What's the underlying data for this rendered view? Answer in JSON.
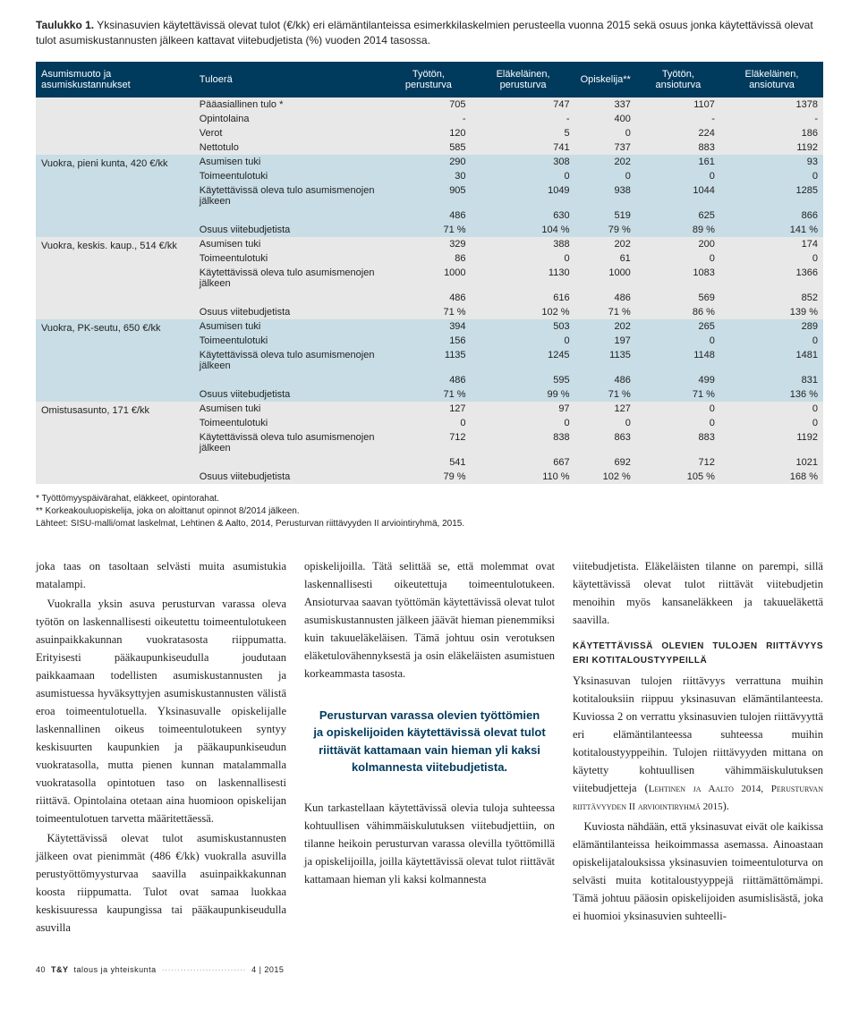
{
  "table": {
    "caption_label": "Taulukko 1.",
    "caption_text": "Yksinasuvien käytettävissä olevat tulot (€/kk) eri elämäntilanteissa esimerkkilaskelmien perusteella vuonna 2015 sekä osuus jonka käytettävissä olevat tulot asumiskustannusten jälkeen kattavat viitebudjetista (%) vuoden 2014 tasossa.",
    "headers": {
      "col1": "Asumismuoto ja asumiskustannukset",
      "col2": "Tuloerä",
      "col3": "Työtön, perusturva",
      "col4": "Eläkeläinen, perusturva",
      "col5": "Opiskelija**",
      "col6": "Työtön, ansioturva",
      "col7": "Eläkeläinen, ansioturva"
    },
    "groups": [
      {
        "label": "",
        "band": "band-light",
        "rows": [
          {
            "tuloerä": "Pääasiallinen tulo *",
            "c3": "705",
            "c4": "747",
            "c5": "337",
            "c6": "1107",
            "c7": "1378"
          },
          {
            "tuloerä": "Opintolaina",
            "c3": "-",
            "c4": "-",
            "c5": "400",
            "c6": "-",
            "c7": "-"
          },
          {
            "tuloerä": "Verot",
            "c3": "120",
            "c4": "5",
            "c5": "0",
            "c6": "224",
            "c7": "186"
          },
          {
            "tuloerä": "Nettotulo",
            "c3": "585",
            "c4": "741",
            "c5": "737",
            "c6": "883",
            "c7": "1192"
          }
        ]
      },
      {
        "label": "Vuokra, pieni kunta, 420 €/kk",
        "band": "band-blue",
        "rows": [
          {
            "tuloerä": "Asumisen tuki",
            "c3": "290",
            "c4": "308",
            "c5": "202",
            "c6": "161",
            "c7": "93"
          },
          {
            "tuloerä": "Toimeentulotuki",
            "c3": "30",
            "c4": "0",
            "c5": "0",
            "c6": "0",
            "c7": "0"
          },
          {
            "tuloerä": "Käytettävissä oleva tulo asumismenojen jälkeen",
            "c3": "905",
            "c4": "1049",
            "c5": "938",
            "c6": "1044",
            "c7": "1285"
          },
          {
            "tuloerä": "",
            "c3": "486",
            "c4": "630",
            "c5": "519",
            "c6": "625",
            "c7": "866"
          },
          {
            "tuloerä": "Osuus viitebudjetista",
            "c3": "71 %",
            "c4": "104 %",
            "c5": "79 %",
            "c6": "89 %",
            "c7": "141 %"
          }
        ]
      },
      {
        "label": "Vuokra, keskis. kaup., 514 €/kk",
        "band": "band-light",
        "rows": [
          {
            "tuloerä": "Asumisen tuki",
            "c3": "329",
            "c4": "388",
            "c5": "202",
            "c6": "200",
            "c7": "174"
          },
          {
            "tuloerä": "Toimeentulotuki",
            "c3": "86",
            "c4": "0",
            "c5": "61",
            "c6": "0",
            "c7": "0"
          },
          {
            "tuloerä": "Käytettävissä oleva tulo asumismenojen jälkeen",
            "c3": "1000",
            "c4": "1130",
            "c5": "1000",
            "c6": "1083",
            "c7": "1366"
          },
          {
            "tuloerä": "",
            "c3": "486",
            "c4": "616",
            "c5": "486",
            "c6": "569",
            "c7": "852"
          },
          {
            "tuloerä": "Osuus viitebudjetista",
            "c3": "71 %",
            "c4": "102 %",
            "c5": "71 %",
            "c6": "86 %",
            "c7": "139 %"
          }
        ]
      },
      {
        "label": "Vuokra, PK-seutu, 650 €/kk",
        "band": "band-blue",
        "rows": [
          {
            "tuloerä": "Asumisen tuki",
            "c3": "394",
            "c4": "503",
            "c5": "202",
            "c6": "265",
            "c7": "289"
          },
          {
            "tuloerä": "Toimeentulotuki",
            "c3": "156",
            "c4": "0",
            "c5": "197",
            "c6": "0",
            "c7": "0"
          },
          {
            "tuloerä": "Käytettävissä oleva tulo asumismenojen jälkeen",
            "c3": "1135",
            "c4": "1245",
            "c5": "1135",
            "c6": "1148",
            "c7": "1481"
          },
          {
            "tuloerä": "",
            "c3": "486",
            "c4": "595",
            "c5": "486",
            "c6": "499",
            "c7": "831"
          },
          {
            "tuloerä": "Osuus viitebudjetista",
            "c3": "71 %",
            "c4": "99 %",
            "c5": "71 %",
            "c6": "71 %",
            "c7": "136 %"
          }
        ]
      },
      {
        "label": "Omistusasunto, 171 €/kk",
        "band": "band-light",
        "rows": [
          {
            "tuloerä": "Asumisen tuki",
            "c3": "127",
            "c4": "97",
            "c5": "127",
            "c6": "0",
            "c7": "0"
          },
          {
            "tuloerä": "Toimeentulotuki",
            "c3": "0",
            "c4": "0",
            "c5": "0",
            "c6": "0",
            "c7": "0"
          },
          {
            "tuloerä": "Käytettävissä oleva tulo asumismenojen jälkeen",
            "c3": "712",
            "c4": "838",
            "c5": "863",
            "c6": "883",
            "c7": "1192"
          },
          {
            "tuloerä": "",
            "c3": "541",
            "c4": "667",
            "c5": "692",
            "c6": "712",
            "c7": "1021"
          },
          {
            "tuloerä": "Osuus viitebudjetista",
            "c3": "79 %",
            "c4": "110 %",
            "c5": "102 %",
            "c6": "105 %",
            "c7": "168 %"
          }
        ]
      }
    ],
    "footnotes": {
      "f1": "* Työttömyyspäivärahat, eläkkeet, opintorahat.",
      "f2": "** Korkeakouluopiskelija, joka on aloittanut opinnot 8/2014 jälkeen.",
      "f3": "Lähteet: SISU-malli/omat laskelmat, Lehtinen & Aalto, 2014, Perusturvan riittävyyden II arviointiryhmä, 2015."
    }
  },
  "body": {
    "col1": {
      "p1": "joka taas on tasoltaan selvästi muita asumistukia matalampi.",
      "p2": "Vuokralla yksin asuva perusturvan varassa oleva työtön on laskennallisesti oikeutettu toimeentulotukeen asuinpaikkakunnan vuokratasosta riippumatta. Erityisesti pääkaupunkiseudulla joudutaan paikkaamaan todellisten asumiskustannusten ja asumistuessa hyväksyttyjen asumiskustannusten välistä eroa toimeentulotuella. Yksinasuvalle opiskelijalle laskennallinen oikeus toimeentulotukeen syntyy keskisuurten kaupunkien ja pääkaupunkiseudun vuokratasolla, mutta pienen kunnan matalammalla vuokratasolla opintotuen taso on laskennallisesti riittävä. Opintolaina otetaan aina huomioon opiskelijan toimeentulotuen tarvetta määritettäessä.",
      "p3": "Käytettävissä olevat tulot asumiskustannusten jälkeen ovat pienimmät (486 €/kk) vuokralla asuvilla perustyöttömyysturvaa saavilla asuinpaikkakunnan koosta riippumatta. Tulot ovat samaa luokkaa keskisuuressa kaupungissa tai pääkaupunkiseudulla asuvilla"
    },
    "col2": {
      "p1": "opiskelijoilla. Tätä selittää se, että molemmat ovat laskennallisesti oikeutettuja toimeentulotukeen. Ansioturvaa saavan työttömän käytettävissä olevat tulot asumiskustannusten jälkeen jäävät hieman pienemmiksi kuin takuueläkeläisen. Tämä johtuu osin verotuksen eläketulovähennyksestä ja osin eläkeläisten asumistuen korkeammasta tasosta.",
      "pullquote": "Perusturvan varassa olevien työttömien ja opiskelijoiden käytettävissä olevat tulot riittävät kattamaan vain hieman yli kaksi kolmannesta viitebudjetista.",
      "p2": "Kun tarkastellaan käytettävissä olevia tuloja suhteessa kohtuullisen vähimmäiskulutuksen viitebudjettiin, on tilanne heikoin perusturvan varassa olevilla työttömillä ja opiskelijoilla, joilla käytettävissä olevat tulot riittävät kattamaan hieman yli kaksi kolmannesta"
    },
    "col3": {
      "p1": "viitebudjetista. Eläkeläisten tilanne on parempi, sillä käytettävissä olevat tulot riittävät viitebudjetin menoihin myös kansaneläkkeen ja takuueläkettä saavilla.",
      "subhead": "KÄYTETTÄVISSÄ OLEVIEN TULOJEN RIITTÄVYYS ERI KOTITALOUSTYYPEILLÄ",
      "p2_a": "Yksinasuvan tulojen riittävyys verrattuna muihin kotitalouksiin riippuu yksinasuvan elämäntilanteesta. Kuviossa 2 on verrattu yksinasuvien tulojen riittävyyttä eri elämäntilanteessa suhteessa muihin kotitaloustyyppeihin. Tulojen riittävyyden mittana on käytetty kohtuullisen vähimmäiskulutuksen viitebudjetteja (",
      "ref": "Lehtinen ja Aalto 2014, Perusturvan riittävyyden II arviointiryhmä 2015",
      "p2_b": ").",
      "p3": "Kuviosta nähdään, että yksinasuvat eivät ole kaikissa elämäntilanteissa heikoimmassa asemassa. Ainoastaan opiskelijatalouksissa yksinasuvien toimeentuloturva on selvästi muita kotitaloustyyppejä riittämättömämpi. Tämä johtuu pääosin opiskelijoiden asumislisästä, joka ei huomioi yksinasuvien suhteelli-"
    }
  },
  "footer": {
    "page": "40",
    "mag": "T&Y",
    "subtitle": "talous ja yhteiskunta",
    "issue": "4 | 2015"
  },
  "colors": {
    "header_bg": "#003a5d",
    "band_light": "#e8e8e8",
    "band_blue": "#c8dde5",
    "pullquote": "#003a5d"
  }
}
